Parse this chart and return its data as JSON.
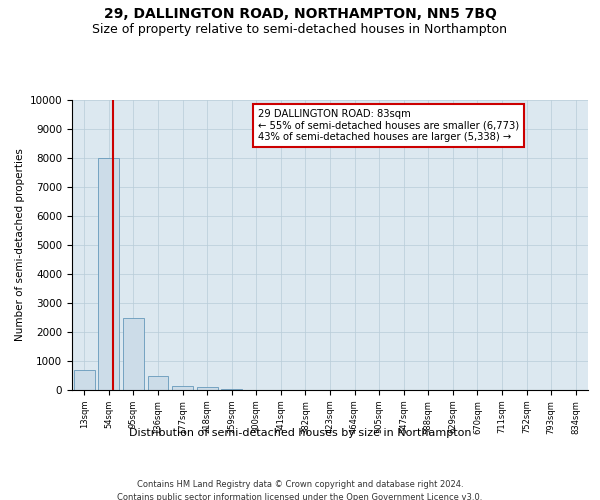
{
  "title": "29, DALLINGTON ROAD, NORTHAMPTON, NN5 7BQ",
  "subtitle": "Size of property relative to semi-detached houses in Northampton",
  "xlabel": "Distribution of semi-detached houses by size in Northampton",
  "ylabel": "Number of semi-detached properties",
  "footer1": "Contains HM Land Registry data © Crown copyright and database right 2024.",
  "footer2": "Contains public sector information licensed under the Open Government Licence v3.0.",
  "bins": [
    "13sqm",
    "54sqm",
    "95sqm",
    "136sqm",
    "177sqm",
    "218sqm",
    "259sqm",
    "300sqm",
    "341sqm",
    "382sqm",
    "423sqm",
    "464sqm",
    "505sqm",
    "547sqm",
    "588sqm",
    "629sqm",
    "670sqm",
    "711sqm",
    "752sqm",
    "793sqm",
    "834sqm"
  ],
  "bar_values": [
    700,
    8000,
    2500,
    500,
    150,
    100,
    50,
    0,
    0,
    0,
    0,
    0,
    0,
    0,
    0,
    0,
    0,
    0,
    0,
    0
  ],
  "bar_color": "#ccdce8",
  "bar_edge_color": "#6699bb",
  "ylim": [
    0,
    10000
  ],
  "yticks": [
    0,
    1000,
    2000,
    3000,
    4000,
    5000,
    6000,
    7000,
    8000,
    9000,
    10000
  ],
  "annotation_line1": "29 DALLINGTON ROAD: 83sqm",
  "annotation_line2": "← 55% of semi-detached houses are smaller (6,773)",
  "annotation_line3": "43% of semi-detached houses are larger (5,338) →",
  "annotation_box_edge_color": "#cc0000",
  "title_fontsize": 10,
  "subtitle_fontsize": 9,
  "bg_color": "#ffffff",
  "plot_bg_color": "#dce8f0",
  "grid_color": "#b8ccd8"
}
